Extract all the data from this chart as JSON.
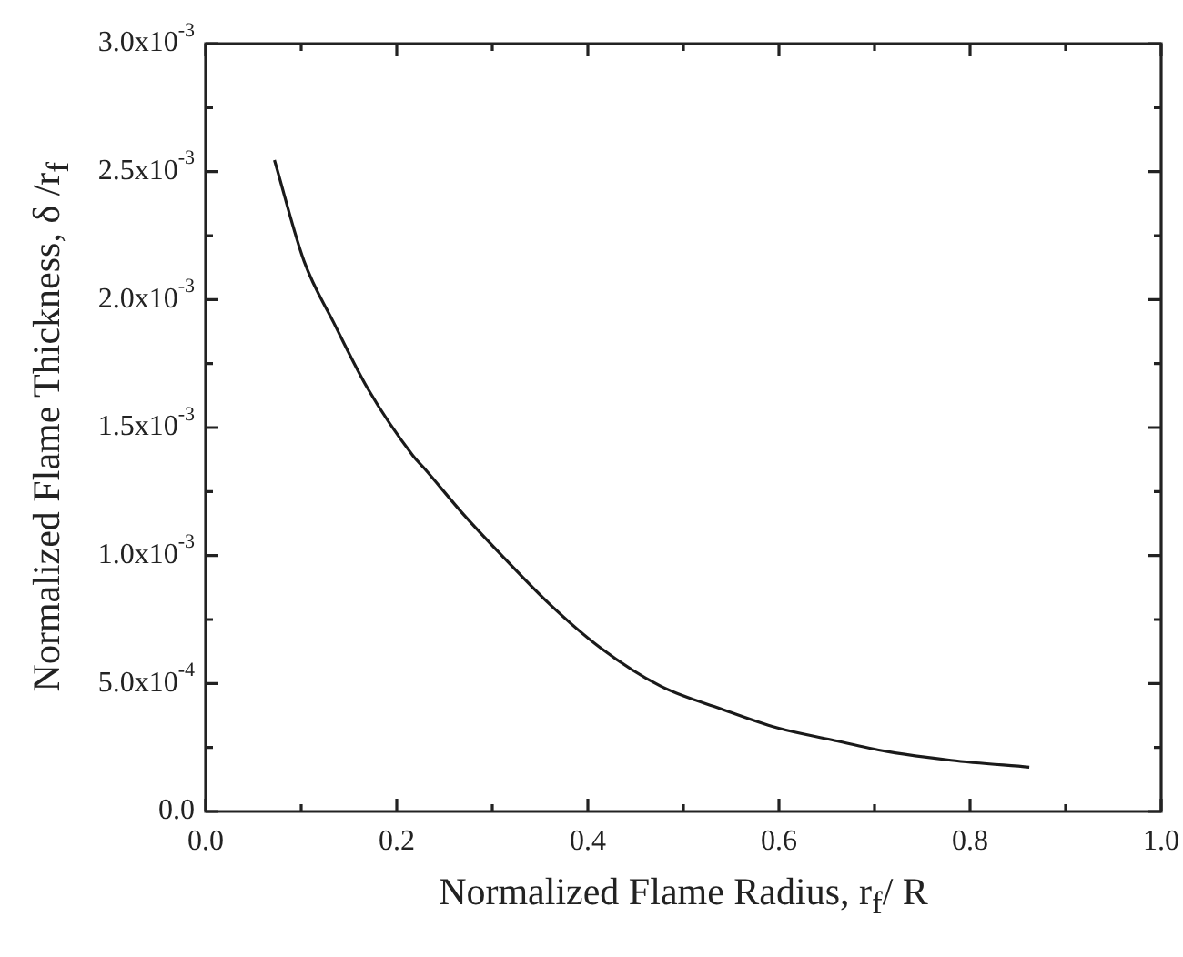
{
  "chart_data": {
    "type": "line",
    "xlabel": "Normalized Flame Radius, r$_{f}$/ R",
    "ylabel": "Normalized Flame Thickness, δ /r$_{f}$",
    "x": [
      0.072,
      0.103,
      0.134,
      0.17,
      0.217,
      0.229,
      0.27,
      0.31,
      0.36,
      0.413,
      0.476,
      0.54,
      0.598,
      0.655,
      0.712,
      0.78,
      0.862
    ],
    "series": [
      {
        "color": "#1a1a1a",
        "values": [
          0.002545,
          0.00215,
          0.00191,
          0.00165,
          0.00139,
          0.00134,
          0.00116,
          0.001,
          0.00081,
          0.00064,
          0.00049,
          0.0004,
          0.000327,
          0.00028,
          0.000235,
          0.0002,
          0.000173
        ]
      }
    ],
    "xlim": [
      0,
      1
    ],
    "xticks": [
      {
        "value": 0,
        "label": "0.0"
      },
      {
        "value": 0.1,
        "label": null
      },
      {
        "value": 0.2,
        "label": "0.2"
      },
      {
        "value": 0.3,
        "label": null
      },
      {
        "value": 0.4,
        "label": "0.4"
      },
      {
        "value": 0.5,
        "label": null
      },
      {
        "value": 0.6,
        "label": "0.6"
      },
      {
        "value": 0.7,
        "label": null
      },
      {
        "value": 0.8,
        "label": "0.8"
      },
      {
        "value": 0.9,
        "label": null
      },
      {
        "value": 1,
        "label": "1.0"
      }
    ],
    "ylim": [
      0,
      0.003
    ],
    "yticks": [
      {
        "value": 0,
        "label": "0.0"
      },
      {
        "value": 0.00025,
        "label": null
      },
      {
        "value": 0.0005,
        "label": "5.0x10$^{-4}$"
      },
      {
        "value": 0.00075,
        "label": null
      },
      {
        "value": 0.001,
        "label": "1.0x10$^{-3}$"
      },
      {
        "value": 0.00125,
        "label": null
      },
      {
        "value": 0.0015,
        "label": "1.5x10$^{-3}$"
      },
      {
        "value": 0.00175,
        "label": null
      },
      {
        "value": 0.002,
        "label": "2.0x10$^{-3}$"
      },
      {
        "value": 0.00225,
        "label": null
      },
      {
        "value": 0.0025,
        "label": "2.5x10$^{-3}$"
      },
      {
        "value": 0.00275,
        "label": null
      },
      {
        "value": 0.003,
        "label": "3.0x10$^{-3}$"
      }
    ],
    "grid": false,
    "legend": false,
    "marker": "none",
    "line_style": "solid"
  }
}
